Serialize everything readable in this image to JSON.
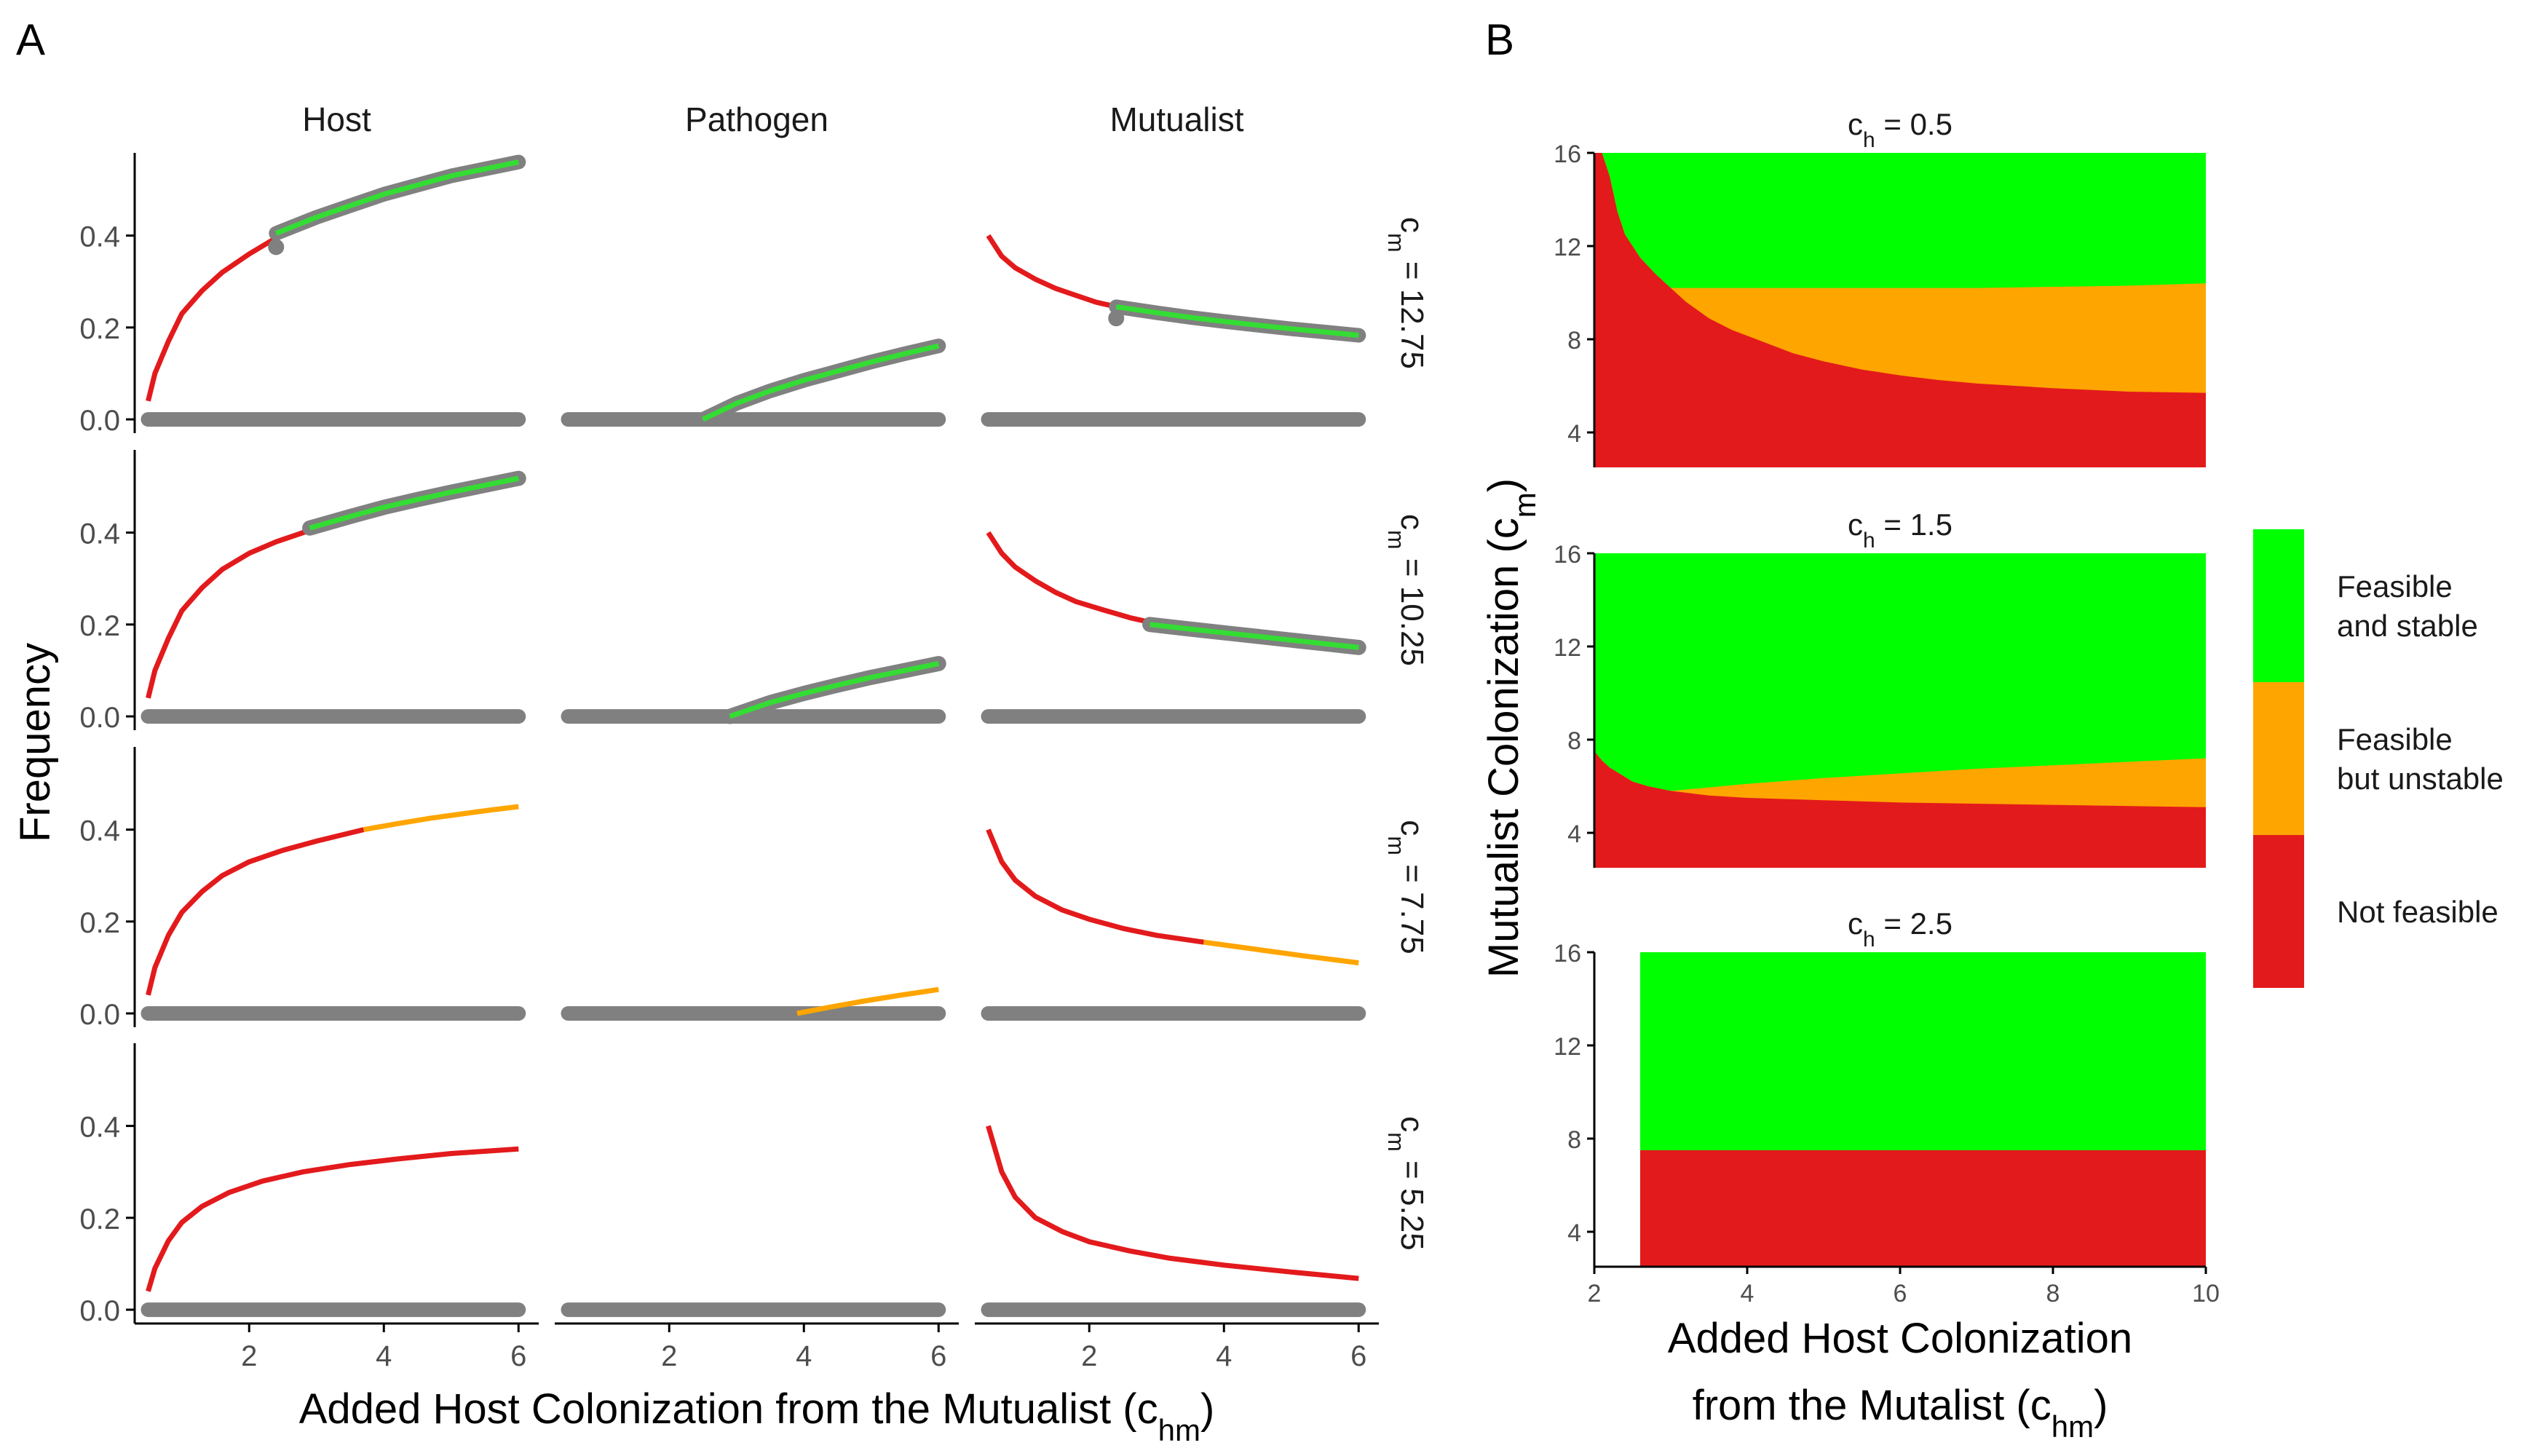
{
  "panel_labels": {
    "a": "A",
    "b": "B"
  },
  "colors": {
    "red": "#E31A1C",
    "orange": "#FFA500",
    "green": "#00FF00",
    "curve_green": "#33DD33",
    "grey": "#808080",
    "axis": "#000000",
    "tick_text": "#4D4D4D"
  },
  "chart_data": [
    {
      "id": "A",
      "type": "line",
      "facet_columns": [
        "Host",
        "Pathogen",
        "Mutualist"
      ],
      "facet_rows": [
        "c_m = 12.75",
        "c_m = 10.25",
        "c_m = 7.75",
        "c_m = 5.25"
      ],
      "facet_row_labels": [
        {
          "main": "c",
          "sub": "m",
          "value": " = 12.75"
        },
        {
          "main": "c",
          "sub": "m",
          "value": " = 10.25"
        },
        {
          "main": "c",
          "sub": "m",
          "value": " = 7.75"
        },
        {
          "main": "c",
          "sub": "m",
          "value": " = 5.25"
        }
      ],
      "xlabel": {
        "text": "Added Host Colonization from the Mutualist (",
        "sym": "c",
        "sub": "hm",
        "close": ")"
      },
      "ylabel": "Frequency",
      "xlim": [
        0.3,
        6.3
      ],
      "ylim": [
        -0.03,
        0.58
      ],
      "xticks": [
        2,
        4,
        6
      ],
      "yticks": [
        0.0,
        0.2,
        0.4
      ],
      "ytick_labels": [
        "0.0",
        "0.2",
        "0.4"
      ],
      "status_legend": {
        "red": "Not feasible",
        "orange": "Feasible but unstable",
        "green": "Feasible and stable"
      },
      "panels": [
        [
          {
            "zero_line": [
              0.5,
              6
            ],
            "segments": [
              {
                "status": "red",
                "x": [
                  0.5,
                  0.6,
                  0.8,
                  1.0,
                  1.3,
                  1.6,
                  2.0,
                  2.4
                ],
                "y": [
                  0.04,
                  0.1,
                  0.17,
                  0.23,
                  0.28,
                  0.32,
                  0.36,
                  0.395
                ]
              },
              {
                "status": "green",
                "band": 0.012,
                "x": [
                  2.4,
                  3.0,
                  3.5,
                  4.0,
                  4.5,
                  5.0,
                  5.5,
                  6.0
                ],
                "y": [
                  0.405,
                  0.44,
                  0.465,
                  0.49,
                  0.51,
                  0.53,
                  0.545,
                  0.56
                ]
              }
            ],
            "point": [
              2.4,
              0.375
            ]
          },
          {
            "zero_line": [
              0.5,
              6
            ],
            "segments": [
              {
                "status": "green",
                "band": 0.012,
                "x": [
                  2.5,
                  3.0,
                  3.5,
                  4.0,
                  4.5,
                  5.0,
                  5.5,
                  6.0
                ],
                "y": [
                  0.0,
                  0.035,
                  0.062,
                  0.085,
                  0.105,
                  0.125,
                  0.143,
                  0.16
                ]
              }
            ]
          },
          {
            "zero_line": [
              0.5,
              6
            ],
            "segments": [
              {
                "status": "red",
                "x": [
                  0.5,
                  0.7,
                  0.9,
                  1.2,
                  1.5,
                  1.8,
                  2.1,
                  2.4
                ],
                "y": [
                  0.4,
                  0.355,
                  0.33,
                  0.305,
                  0.285,
                  0.27,
                  0.255,
                  0.245
                ]
              },
              {
                "status": "green",
                "band": 0.012,
                "x": [
                  2.4,
                  3.0,
                  3.5,
                  4.0,
                  4.5,
                  5.0,
                  5.5,
                  6.0
                ],
                "y": [
                  0.245,
                  0.232,
                  0.222,
                  0.213,
                  0.205,
                  0.197,
                  0.19,
                  0.183
                ]
              }
            ],
            "point": [
              2.4,
              0.22
            ]
          }
        ],
        [
          {
            "zero_line": [
              0.5,
              6
            ],
            "segments": [
              {
                "status": "red",
                "x": [
                  0.5,
                  0.6,
                  0.8,
                  1.0,
                  1.3,
                  1.6,
                  2.0,
                  2.4,
                  2.9
                ],
                "y": [
                  0.04,
                  0.1,
                  0.17,
                  0.23,
                  0.28,
                  0.32,
                  0.355,
                  0.38,
                  0.405
                ]
              },
              {
                "status": "green",
                "band": 0.015,
                "x": [
                  2.9,
                  3.5,
                  4.0,
                  4.5,
                  5.0,
                  5.5,
                  6.0
                ],
                "y": [
                  0.41,
                  0.435,
                  0.455,
                  0.472,
                  0.488,
                  0.503,
                  0.518
                ]
              }
            ]
          },
          {
            "zero_line": [
              0.5,
              6
            ],
            "segments": [
              {
                "status": "green",
                "band": 0.015,
                "x": [
                  2.9,
                  3.5,
                  4.0,
                  4.5,
                  5.0,
                  5.5,
                  6.0
                ],
                "y": [
                  0.0,
                  0.03,
                  0.05,
                  0.068,
                  0.085,
                  0.1,
                  0.115
                ]
              }
            ]
          },
          {
            "zero_line": [
              0.5,
              6
            ],
            "segments": [
              {
                "status": "red",
                "x": [
                  0.5,
                  0.7,
                  0.9,
                  1.2,
                  1.5,
                  1.8,
                  2.2,
                  2.6,
                  2.9
                ],
                "y": [
                  0.4,
                  0.355,
                  0.325,
                  0.295,
                  0.27,
                  0.25,
                  0.232,
                  0.215,
                  0.205
                ]
              },
              {
                "status": "green",
                "band": 0.015,
                "x": [
                  2.9,
                  3.5,
                  4.0,
                  4.5,
                  5.0,
                  5.5,
                  6.0
                ],
                "y": [
                  0.2,
                  0.19,
                  0.182,
                  0.174,
                  0.166,
                  0.158,
                  0.15
                ]
              }
            ]
          }
        ],
        [
          {
            "zero_line": [
              0.5,
              6
            ],
            "segments": [
              {
                "status": "red",
                "x": [
                  0.5,
                  0.6,
                  0.8,
                  1.0,
                  1.3,
                  1.6,
                  2.0,
                  2.5,
                  3.0,
                  3.7
                ],
                "y": [
                  0.04,
                  0.1,
                  0.17,
                  0.22,
                  0.265,
                  0.3,
                  0.33,
                  0.355,
                  0.375,
                  0.4
                ]
              },
              {
                "status": "orange",
                "x": [
                  3.7,
                  4.2,
                  4.7,
                  5.2,
                  5.6,
                  6.0
                ],
                "y": [
                  0.4,
                  0.413,
                  0.425,
                  0.435,
                  0.443,
                  0.45
                ]
              }
            ]
          },
          {
            "zero_line": [
              0.5,
              6
            ],
            "segments": [
              {
                "status": "orange",
                "x": [
                  3.9,
                  4.4,
                  4.9,
                  5.4,
                  6.0
                ],
                "y": [
                  0.0,
                  0.014,
                  0.027,
                  0.039,
                  0.052
                ]
              }
            ]
          },
          {
            "zero_line": [
              0.5,
              6
            ],
            "segments": [
              {
                "status": "red",
                "x": [
                  0.5,
                  0.7,
                  0.9,
                  1.2,
                  1.6,
                  2.0,
                  2.5,
                  3.0,
                  3.7
                ],
                "y": [
                  0.4,
                  0.33,
                  0.29,
                  0.255,
                  0.225,
                  0.205,
                  0.185,
                  0.17,
                  0.155
                ]
              },
              {
                "status": "orange",
                "x": [
                  3.7,
                  4.2,
                  4.7,
                  5.2,
                  6.0
                ],
                "y": [
                  0.155,
                  0.145,
                  0.135,
                  0.125,
                  0.11
                ]
              }
            ]
          }
        ],
        [
          {
            "zero_line": [
              0.5,
              6
            ],
            "segments": [
              {
                "status": "red",
                "x": [
                  0.5,
                  0.6,
                  0.8,
                  1.0,
                  1.3,
                  1.7,
                  2.2,
                  2.8,
                  3.5,
                  4.2,
                  5.0,
                  6.0
                ],
                "y": [
                  0.04,
                  0.09,
                  0.15,
                  0.19,
                  0.225,
                  0.255,
                  0.28,
                  0.3,
                  0.316,
                  0.328,
                  0.34,
                  0.35
                ]
              }
            ]
          },
          {
            "zero_line": [
              0.5,
              6
            ],
            "segments": []
          },
          {
            "zero_line": [
              0.5,
              6
            ],
            "segments": [
              {
                "status": "red",
                "x": [
                  0.5,
                  0.7,
                  0.9,
                  1.2,
                  1.6,
                  2.0,
                  2.6,
                  3.2,
                  4.0,
                  5.0,
                  6.0
                ],
                "y": [
                  0.4,
                  0.3,
                  0.245,
                  0.2,
                  0.17,
                  0.148,
                  0.128,
                  0.112,
                  0.097,
                  0.082,
                  0.068
                ]
              }
            ]
          }
        ]
      ]
    },
    {
      "id": "B",
      "type": "heatmap",
      "xlabel_line1": "Added Host Colonization",
      "xlabel_line2": {
        "text": "from the Mutalist (",
        "sym": "c",
        "sub": "hm",
        "close": ")"
      },
      "ylabel": {
        "text": "Mutualist Colonization (",
        "sym": "c",
        "sub": "m",
        "close": ")"
      },
      "xlim": [
        2,
        10
      ],
      "ylim": [
        2.5,
        16
      ],
      "xticks": [
        2,
        4,
        6,
        8,
        10
      ],
      "yticks": [
        4,
        8,
        12,
        16
      ],
      "legend_labels": [
        "Feasible\nand stable",
        "Feasible\nbut unstable",
        "Not feasible"
      ],
      "legend_order": [
        "green",
        "orange",
        "red"
      ],
      "panels": [
        {
          "title_sym": "c",
          "title_sub": "h",
          "title_value": " = 0.5",
          "x": [
            2.0,
            2.1,
            2.2,
            2.3,
            2.4,
            2.5,
            2.6,
            2.8,
            3.0,
            3.2,
            3.5,
            3.8,
            4.2,
            4.6,
            5.0,
            5.5,
            6.0,
            6.5,
            7.0,
            8.0,
            9.0,
            10.0
          ],
          "red_top": [
            16.0,
            16.0,
            15.0,
            13.5,
            12.5,
            12.0,
            11.5,
            10.8,
            10.2,
            9.6,
            8.9,
            8.4,
            7.9,
            7.4,
            7.05,
            6.7,
            6.45,
            6.25,
            6.1,
            5.9,
            5.75,
            5.7
          ],
          "orange_top": [
            16.0,
            16.0,
            15.0,
            13.5,
            12.5,
            12.0,
            11.5,
            10.8,
            10.2,
            10.2,
            10.2,
            10.2,
            10.2,
            10.2,
            10.2,
            10.2,
            10.2,
            10.2,
            10.2,
            10.25,
            10.3,
            10.4
          ]
        },
        {
          "title_sym": "c",
          "title_sub": "h",
          "title_value": " = 1.5",
          "x": [
            2.0,
            2.1,
            2.2,
            2.35,
            2.5,
            2.7,
            3.0,
            3.5,
            4.0,
            5.0,
            6.0,
            7.0,
            8.0,
            9.0,
            10.0
          ],
          "red_top": [
            7.5,
            7.1,
            6.8,
            6.5,
            6.2,
            6.0,
            5.8,
            5.6,
            5.5,
            5.4,
            5.3,
            5.25,
            5.2,
            5.15,
            5.1
          ],
          "orange_top": [
            7.5,
            7.1,
            6.8,
            6.5,
            6.2,
            6.0,
            5.8,
            5.95,
            6.1,
            6.35,
            6.55,
            6.75,
            6.9,
            7.05,
            7.2
          ]
        },
        {
          "title_sym": "c",
          "title_sub": "h",
          "title_value": " = 2.5",
          "x": [
            2.6,
            10.0
          ],
          "red_top": [
            7.5,
            7.5
          ],
          "orange_top": [
            7.5,
            7.5
          ]
        }
      ]
    }
  ]
}
